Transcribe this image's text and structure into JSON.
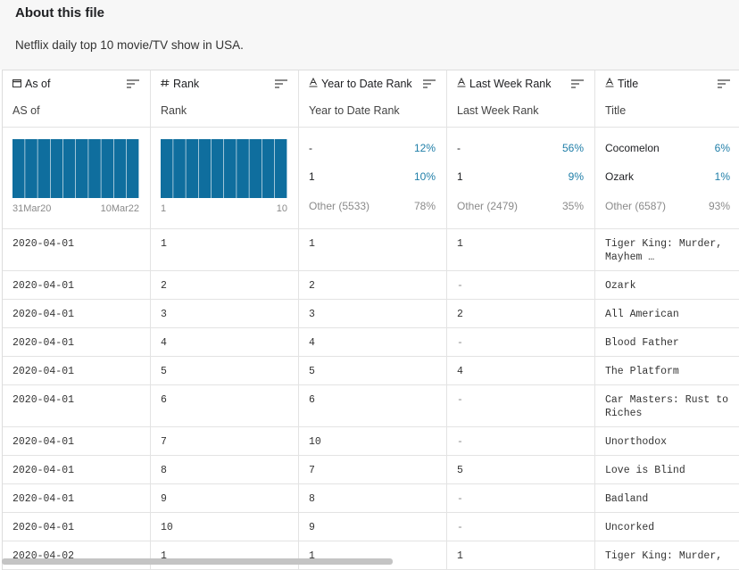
{
  "header": {
    "title": "About this file",
    "description": "Netflix daily top 10 movie/TV show in USA."
  },
  "table": {
    "columns": [
      {
        "name": "As of",
        "subtitle": "AS of",
        "summary": {
          "range": [
            "31Mar20",
            "10Mar22"
          ]
        }
      },
      {
        "name": "Rank",
        "subtitle": "Rank",
        "summary": {
          "range": [
            "1",
            "10"
          ]
        }
      },
      {
        "name": "Year to Date Rank",
        "subtitle": "Year to Date Rank",
        "summary": {
          "top": [
            {
              "label": "-",
              "share": "12%"
            },
            {
              "label": "1",
              "share": "10%"
            }
          ],
          "other": {
            "label": "Other (5533)",
            "share": "78%"
          }
        }
      },
      {
        "name": "Last Week Rank",
        "subtitle": "Last Week Rank",
        "summary": {
          "top": [
            {
              "label": "-",
              "share": "56%"
            },
            {
              "label": "1",
              "share": "9%"
            }
          ],
          "other": {
            "label": "Other (2479)",
            "share": "35%"
          }
        }
      },
      {
        "name": "Title",
        "subtitle": "Title",
        "summary": {
          "top": [
            {
              "label": "Cocomelon",
              "share": "6%"
            },
            {
              "label": "Ozark",
              "share": "1%"
            }
          ],
          "other": {
            "label": "Other (6587)",
            "share": "93%"
          }
        }
      }
    ],
    "rows": [
      [
        "2020-04-01",
        "1",
        "1",
        "1",
        "Tiger King: Murder, Mayhem …"
      ],
      [
        "2020-04-01",
        "2",
        "2",
        "-",
        "Ozark"
      ],
      [
        "2020-04-01",
        "3",
        "3",
        "2",
        "All American"
      ],
      [
        "2020-04-01",
        "4",
        "4",
        "-",
        "Blood Father"
      ],
      [
        "2020-04-01",
        "5",
        "5",
        "4",
        "The Platform"
      ],
      [
        "2020-04-01",
        "6",
        "6",
        "-",
        "Car Masters: Rust to Riches"
      ],
      [
        "2020-04-01",
        "7",
        "10",
        "-",
        "Unorthodox"
      ],
      [
        "2020-04-01",
        "8",
        "7",
        "5",
        "Love is Blind"
      ],
      [
        "2020-04-01",
        "9",
        "8",
        "-",
        "Badland"
      ],
      [
        "2020-04-01",
        "10",
        "9",
        "-",
        "Uncorked"
      ],
      [
        "2020-04-02",
        "1",
        "1",
        "1",
        "Tiger King: Murder,"
      ]
    ]
  }
}
